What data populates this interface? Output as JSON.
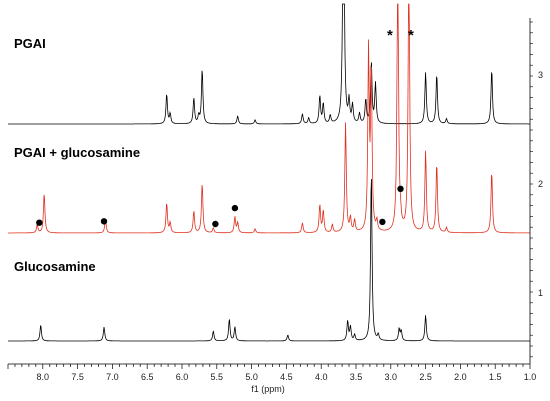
{
  "chart_data": {
    "type": "line",
    "xlabel": "f1 (ppm)",
    "xlim": [
      8.5,
      1.0
    ],
    "x_ticks": [
      "8.0",
      "7.5",
      "7.0",
      "6.5",
      "6.0",
      "5.5",
      "5.0",
      "4.5",
      "4.0",
      "3.5",
      "3.0",
      "2.5",
      "2.0",
      "1.5",
      "1.0"
    ],
    "right_axis_ticks": [
      "1",
      "2",
      "3"
    ],
    "annotations": [
      "*",
      "*"
    ],
    "series": [
      {
        "name": "PGAI",
        "color": "#000000",
        "peaks": [
          {
            "ppm": 6.22,
            "height": 30
          },
          {
            "ppm": 6.17,
            "height": 10
          },
          {
            "ppm": 5.83,
            "height": 26
          },
          {
            "ppm": 5.76,
            "height": 8
          },
          {
            "ppm": 5.71,
            "height": 55
          },
          {
            "ppm": 5.2,
            "height": 8
          },
          {
            "ppm": 4.95,
            "height": 4
          },
          {
            "ppm": 4.27,
            "height": 10
          },
          {
            "ppm": 4.18,
            "height": 6
          },
          {
            "ppm": 4.02,
            "height": 28
          },
          {
            "ppm": 3.97,
            "height": 20
          },
          {
            "ppm": 3.87,
            "height": 8
          },
          {
            "ppm": 3.68,
            "height": 300
          },
          {
            "ppm": 3.6,
            "height": 22
          },
          {
            "ppm": 3.55,
            "height": 18
          },
          {
            "ppm": 3.45,
            "height": 10
          },
          {
            "ppm": 3.36,
            "height": 24
          },
          {
            "ppm": 3.28,
            "height": 62
          },
          {
            "ppm": 3.22,
            "height": 40
          },
          {
            "ppm": 2.5,
            "height": 52
          },
          {
            "ppm": 2.34,
            "height": 50
          },
          {
            "ppm": 2.2,
            "height": 5
          },
          {
            "ppm": 1.55,
            "height": 55
          }
        ]
      },
      {
        "name": "PGAI + glucosamine",
        "color": "#e0301e",
        "peaks": [
          {
            "ppm": 8.08,
            "height": 8
          },
          {
            "ppm": 7.98,
            "height": 40
          },
          {
            "ppm": 7.1,
            "height": 14
          },
          {
            "ppm": 6.22,
            "height": 30
          },
          {
            "ppm": 6.17,
            "height": 10
          },
          {
            "ppm": 5.83,
            "height": 22
          },
          {
            "ppm": 5.71,
            "height": 50
          },
          {
            "ppm": 5.55,
            "height": 5
          },
          {
            "ppm": 5.24,
            "height": 16
          },
          {
            "ppm": 5.2,
            "height": 10
          },
          {
            "ppm": 4.95,
            "height": 4
          },
          {
            "ppm": 4.27,
            "height": 10
          },
          {
            "ppm": 4.02,
            "height": 28
          },
          {
            "ppm": 3.97,
            "height": 22
          },
          {
            "ppm": 3.84,
            "height": 8
          },
          {
            "ppm": 3.65,
            "height": 110
          },
          {
            "ppm": 3.58,
            "height": 14
          },
          {
            "ppm": 3.52,
            "height": 12
          },
          {
            "ppm": 3.32,
            "height": 180
          },
          {
            "ppm": 3.28,
            "height": 160
          },
          {
            "ppm": 3.2,
            "height": 10
          },
          {
            "ppm": 2.9,
            "height": 300
          },
          {
            "ppm": 2.86,
            "height": 8
          },
          {
            "ppm": 2.74,
            "height": 300
          },
          {
            "ppm": 2.5,
            "height": 82
          },
          {
            "ppm": 2.34,
            "height": 70
          },
          {
            "ppm": 2.2,
            "height": 5
          },
          {
            "ppm": 1.55,
            "height": 62
          }
        ],
        "markers_ppm": [
          8.05,
          7.12,
          5.52,
          5.24,
          3.12,
          2.86
        ]
      },
      {
        "name": "Glucosamine",
        "color": "#000000",
        "peaks": [
          {
            "ppm": 8.03,
            "height": 16
          },
          {
            "ppm": 7.12,
            "height": 14
          },
          {
            "ppm": 5.55,
            "height": 10
          },
          {
            "ppm": 5.32,
            "height": 22
          },
          {
            "ppm": 5.24,
            "height": 14
          },
          {
            "ppm": 4.48,
            "height": 6
          },
          {
            "ppm": 3.62,
            "height": 20
          },
          {
            "ppm": 3.58,
            "height": 14
          },
          {
            "ppm": 3.52,
            "height": 6
          },
          {
            "ppm": 3.28,
            "height": 170
          },
          {
            "ppm": 3.18,
            "height": 6
          },
          {
            "ppm": 2.88,
            "height": 12
          },
          {
            "ppm": 2.85,
            "height": 10
          },
          {
            "ppm": 2.5,
            "height": 26
          }
        ]
      }
    ]
  }
}
